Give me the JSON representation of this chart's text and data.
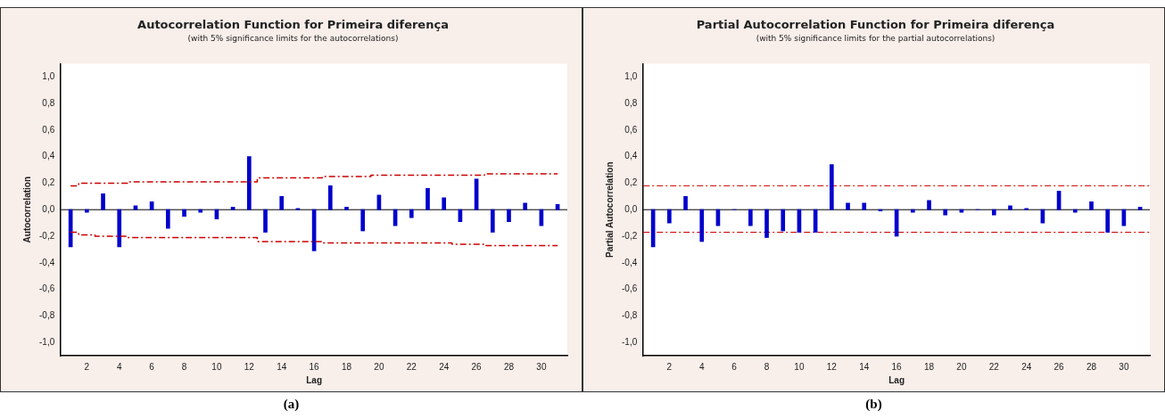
{
  "chart_data": [
    {
      "type": "bar",
      "title": "Autocorrelation Function for Primeira diferença",
      "subtitle": "(with 5% significance limits for the autocorrelations)",
      "xlabel": "Lag",
      "ylabel": "Autocorrelation",
      "x": [
        1,
        2,
        3,
        4,
        5,
        6,
        7,
        8,
        9,
        10,
        11,
        12,
        13,
        14,
        15,
        16,
        17,
        18,
        19,
        20,
        21,
        22,
        23,
        24,
        25,
        26,
        27,
        28,
        29,
        30,
        31
      ],
      "series": [
        {
          "color": "#0000cc",
          "values": [
            -0.28,
            -0.02,
            0.12,
            -0.28,
            0.03,
            0.06,
            -0.14,
            -0.05,
            -0.02,
            -0.07,
            0.02,
            0.4,
            -0.17,
            0.1,
            0.01,
            -0.31,
            0.18,
            0.02,
            -0.16,
            0.11,
            -0.12,
            -0.06,
            0.16,
            0.09,
            -0.09,
            0.23,
            -0.17,
            -0.09,
            0.05,
            -0.12,
            0.04
          ]
        },
        {
          "type": "step",
          "color": "#cc0000",
          "line_style": "dashed",
          "values": [
            0.18,
            0.2,
            0.2,
            0.2,
            0.21,
            0.21,
            0.21,
            0.21,
            0.21,
            0.21,
            0.21,
            0.21,
            0.24,
            0.24,
            0.24,
            0.24,
            0.25,
            0.25,
            0.25,
            0.26,
            0.26,
            0.26,
            0.26,
            0.26,
            0.26,
            0.26,
            0.27,
            0.27,
            0.27,
            0.27,
            0.27
          ]
        },
        {
          "type": "step",
          "color": "#cc0000",
          "line_style": "dashed",
          "values": [
            -0.17,
            -0.19,
            -0.2,
            -0.2,
            -0.21,
            -0.21,
            -0.21,
            -0.21,
            -0.21,
            -0.21,
            -0.21,
            -0.21,
            -0.24,
            -0.24,
            -0.24,
            -0.24,
            -0.25,
            -0.25,
            -0.25,
            -0.25,
            -0.25,
            -0.25,
            -0.25,
            -0.25,
            -0.26,
            -0.26,
            -0.27,
            -0.27,
            -0.27,
            -0.27,
            -0.27
          ]
        }
      ],
      "xlim": [
        0.4,
        31.6
      ],
      "xticks": [
        2,
        4,
        6,
        8,
        10,
        12,
        14,
        16,
        18,
        20,
        22,
        24,
        26,
        28,
        30
      ],
      "ylim": [
        -1.1,
        1.1
      ],
      "yticks": [
        {
          "value": -1.0,
          "label": "-1,0"
        },
        {
          "value": -0.8,
          "label": "-0,8"
        },
        {
          "value": -0.6,
          "label": "-0,6"
        },
        {
          "value": -0.4,
          "label": "-0,4"
        },
        {
          "value": -0.2,
          "label": "-0,2"
        },
        {
          "value": 0.0,
          "label": "0,0"
        },
        {
          "value": 0.2,
          "label": "0,2"
        },
        {
          "value": 0.4,
          "label": "0,4"
        },
        {
          "value": 0.6,
          "label": "0,6"
        },
        {
          "value": 0.8,
          "label": "0,8"
        },
        {
          "value": 1.0,
          "label": "1,0"
        }
      ],
      "ref_lines": [
        {
          "axis": "y",
          "value": 0,
          "color": "#000000"
        }
      ],
      "grid": false,
      "legend": false,
      "marker": "none",
      "annotations": [
        "(a)"
      ]
    },
    {
      "type": "bar",
      "title": "Partial Autocorrelation Function for Primeira diferença",
      "subtitle": "(with 5% significance limits for the partial autocorrelations)",
      "xlabel": "Lag",
      "ylabel": "Partial Autocorrelation",
      "x": [
        1,
        2,
        3,
        4,
        5,
        6,
        7,
        8,
        9,
        10,
        11,
        12,
        13,
        14,
        15,
        16,
        17,
        18,
        19,
        20,
        21,
        22,
        23,
        24,
        25,
        26,
        27,
        28,
        29,
        30,
        31
      ],
      "series": [
        {
          "color": "#0000cc",
          "values": [
            -0.28,
            -0.1,
            0.1,
            -0.24,
            -0.12,
            0.0,
            -0.12,
            -0.21,
            -0.16,
            -0.17,
            -0.17,
            0.34,
            0.05,
            0.05,
            -0.01,
            -0.2,
            -0.02,
            0.07,
            -0.04,
            -0.02,
            0.0,
            -0.04,
            0.03,
            0.01,
            -0.1,
            0.14,
            -0.02,
            0.06,
            -0.17,
            -0.12,
            0.02
          ]
        }
      ],
      "xlim": [
        0.4,
        31.6
      ],
      "xticks": [
        2,
        4,
        6,
        8,
        10,
        12,
        14,
        16,
        18,
        20,
        22,
        24,
        26,
        28,
        30
      ],
      "ylim": [
        -1.1,
        1.1
      ],
      "yticks": [
        {
          "value": -1.0,
          "label": "-1,0"
        },
        {
          "value": -0.8,
          "label": "-0,8"
        },
        {
          "value": -0.6,
          "label": "-0,6"
        },
        {
          "value": -0.4,
          "label": "-0,4"
        },
        {
          "value": -0.2,
          "label": "-0,2"
        },
        {
          "value": 0.0,
          "label": "0,0"
        },
        {
          "value": 0.2,
          "label": "0,2"
        },
        {
          "value": 0.4,
          "label": "0,4"
        },
        {
          "value": 0.6,
          "label": "0,6"
        },
        {
          "value": 0.8,
          "label": "0,8"
        },
        {
          "value": 1.0,
          "label": "1,0"
        }
      ],
      "ref_lines": [
        {
          "axis": "y",
          "value": 0,
          "color": "#000000"
        },
        {
          "axis": "y",
          "value": 0.18,
          "color": "#cc0000",
          "line_style": "dashed"
        },
        {
          "axis": "y",
          "value": -0.17,
          "color": "#cc0000",
          "line_style": "dashed"
        }
      ],
      "grid": false,
      "legend": false,
      "marker": "none",
      "annotations": [
        "(b)"
      ]
    }
  ]
}
